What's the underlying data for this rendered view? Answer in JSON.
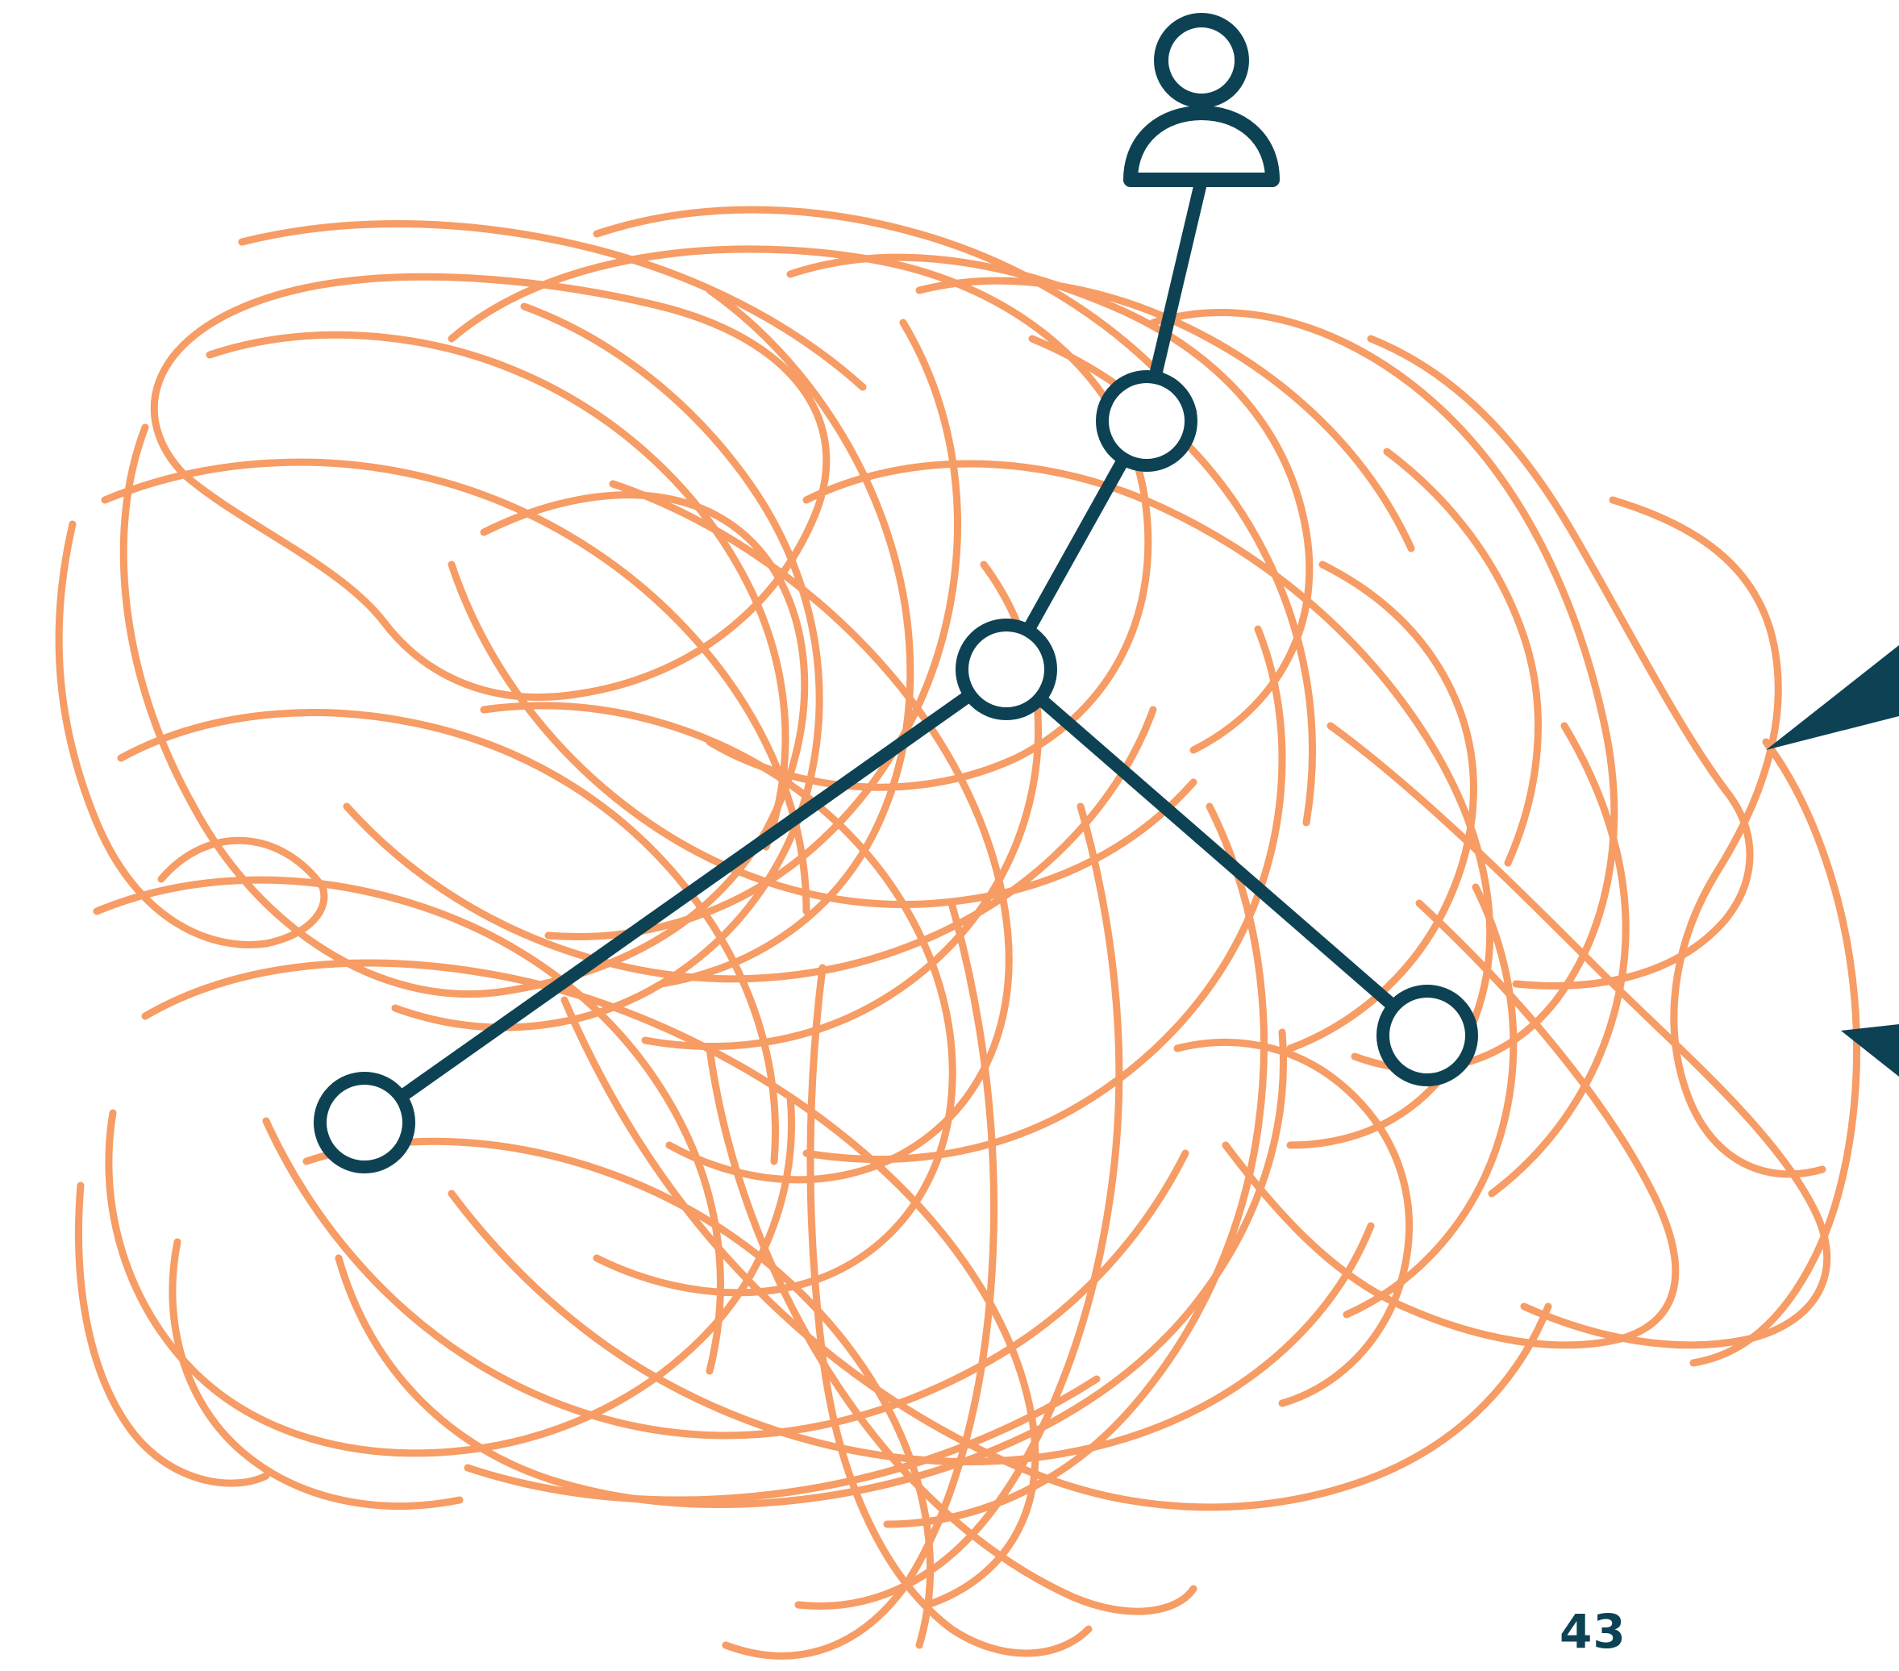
{
  "page": {
    "number": "43"
  },
  "theme": {
    "scribble_color": "#f69c64",
    "network_color": "#0d4254",
    "background": "#ffffff"
  },
  "diagram": {
    "nodes": [
      {
        "id": "person"
      },
      {
        "id": "hub-top"
      },
      {
        "id": "hub-center"
      },
      {
        "id": "node-left"
      },
      {
        "id": "node-right"
      }
    ],
    "edges": [
      [
        "person",
        "hub-top"
      ],
      [
        "hub-top",
        "hub-center"
      ],
      [
        "hub-center",
        "node-left"
      ],
      [
        "hub-center",
        "node-right"
      ]
    ],
    "icons": [
      "person-icon",
      "pointer-arrow-icon"
    ]
  }
}
